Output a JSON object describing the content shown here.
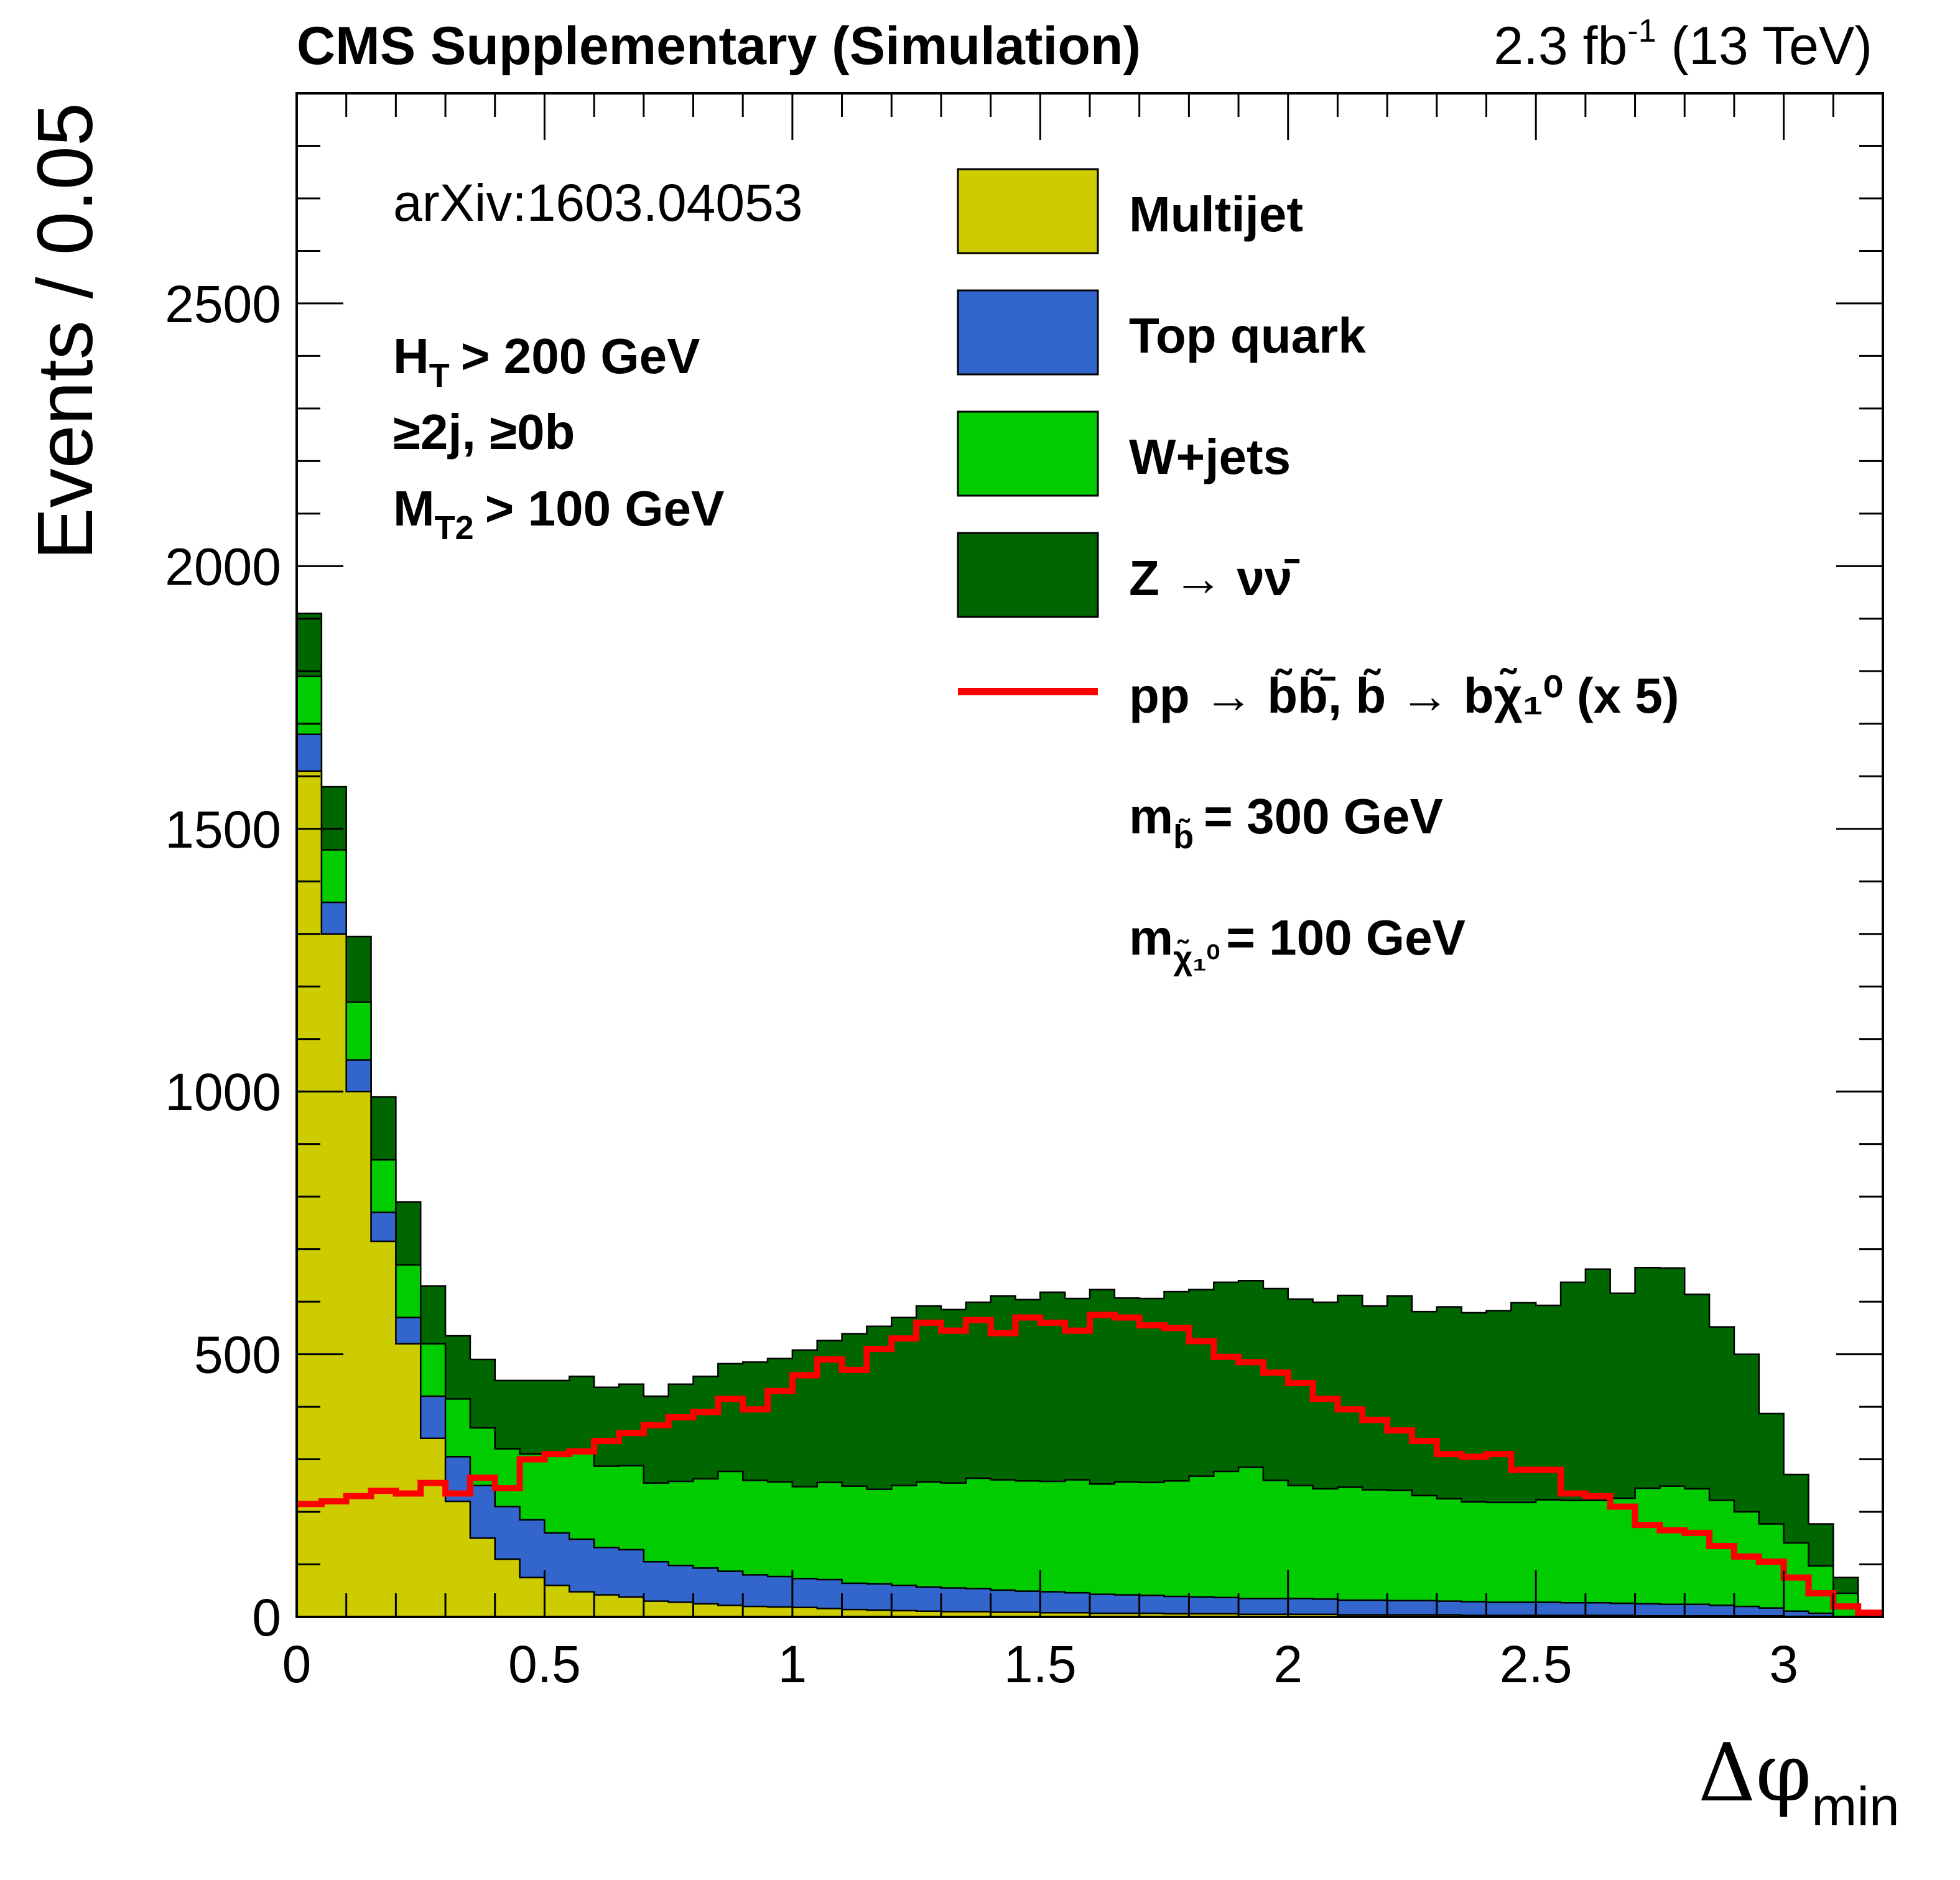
{
  "header": {
    "experiment_label": "CMS Supplementary (Simulation)",
    "lumi_value": "2.3 fb",
    "lumi_exponent": "-1",
    "energy": "(13 TeV)"
  },
  "annotations": {
    "arxiv": "arXiv:1603.04053",
    "ht_cut_prefix": "H",
    "ht_cut_sub": "T",
    "ht_cut_rest": "> 200 GeV",
    "jets_cut": "≥2j, ≥0b",
    "mt2_cut_prefix": "M",
    "mt2_cut_sub": "T2",
    "mt2_cut_rest": "> 100 GeV"
  },
  "legend": {
    "multijet": "Multijet",
    "top": "Top quark",
    "wjets": "W+jets",
    "znunu": "Z  →  νν̄",
    "signal": "pp  →  b̃b̃̄,  b̃  → bχ̃₁⁰ (x 5)",
    "msb_prefix": "m",
    "msb_sub": "b̃",
    "msb_rest": "= 300 GeV",
    "mlsp_prefix": "m",
    "mlsp_sub": "χ̃₁⁰",
    "mlsp_rest": "= 100 GeV"
  },
  "colors": {
    "multijet": "#cccc00",
    "top": "#3366cc",
    "wjets": "#00cc00",
    "znunu": "#006600",
    "signal": "#ff0000"
  },
  "chart_data": {
    "type": "histogram-stacked",
    "xlabel_main": "Δφ",
    "xlabel_sub": "min",
    "ylabel": "Events / 0.05",
    "xlim": [
      0,
      3.2
    ],
    "ylim": [
      0,
      2900
    ],
    "bin_width": 0.05,
    "x_ticks": [
      0,
      0.5,
      1,
      1.5,
      2,
      2.5,
      3
    ],
    "x_tick_labels": [
      "0",
      "0.5",
      "1",
      "1.5",
      "2",
      "2.5",
      "3"
    ],
    "y_ticks": [
      0,
      500,
      1000,
      1500,
      2000,
      2500
    ],
    "y_tick_labels": [
      "0",
      "500",
      "1000",
      "1500",
      "2000",
      "2500"
    ],
    "bin_low_edges": [
      0.0,
      0.05,
      0.1,
      0.15,
      0.2,
      0.25,
      0.3,
      0.35,
      0.4,
      0.45,
      0.5,
      0.55,
      0.6,
      0.65,
      0.7,
      0.75,
      0.8,
      0.85,
      0.9,
      0.95,
      1.0,
      1.05,
      1.1,
      1.15,
      1.2,
      1.25,
      1.3,
      1.35,
      1.4,
      1.45,
      1.5,
      1.55,
      1.6,
      1.65,
      1.7,
      1.75,
      1.8,
      1.85,
      1.9,
      1.95,
      2.0,
      2.05,
      2.1,
      2.15,
      2.2,
      2.25,
      2.3,
      2.35,
      2.4,
      2.45,
      2.5,
      2.55,
      2.6,
      2.65,
      2.7,
      2.75,
      2.8,
      2.85,
      2.9,
      2.95,
      3.0,
      3.05,
      3.1,
      3.15
    ],
    "series": [
      {
        "name": "Multijet",
        "values": [
          1610,
          1300,
          1000,
          715,
          520,
          340,
          220,
          150,
          110,
          75,
          60,
          48,
          42,
          38,
          30,
          28,
          25,
          22,
          20,
          19,
          18,
          16,
          14,
          13,
          12,
          11,
          10,
          10,
          9,
          9,
          8,
          8,
          7,
          7,
          7,
          6,
          6,
          6,
          5,
          5,
          5,
          5,
          4,
          4,
          4,
          4,
          4,
          3,
          3,
          3,
          3,
          3,
          3,
          3,
          2,
          2,
          2,
          2,
          2,
          2,
          1,
          1,
          0,
          0
        ]
      },
      {
        "name": "Top quark",
        "values": [
          70,
          60,
          60,
          55,
          50,
          80,
          85,
          100,
          100,
          110,
          100,
          100,
          90,
          90,
          75,
          70,
          68,
          65,
          60,
          58,
          55,
          55,
          50,
          50,
          48,
          46,
          45,
          44,
          42,
          40,
          40,
          38,
          36,
          35,
          34,
          33,
          32,
          31,
          30,
          30,
          30,
          29,
          28,
          28,
          27,
          27,
          26,
          26,
          25,
          25,
          25,
          24,
          24,
          23,
          23,
          22,
          22,
          20,
          18,
          15,
          10,
          6,
          0,
          0
        ]
      },
      {
        "name": "W+jets",
        "values": [
          110,
          100,
          110,
          100,
          100,
          100,
          110,
          110,
          110,
          125,
          150,
          165,
          155,
          160,
          150,
          160,
          170,
          190,
          180,
          180,
          175,
          185,
          185,
          180,
          190,
          200,
          200,
          210,
          210,
          210,
          210,
          215,
          210,
          215,
          215,
          220,
          230,
          240,
          250,
          225,
          215,
          210,
          215,
          210,
          210,
          200,
          195,
          190,
          190,
          190,
          195,
          195,
          195,
          200,
          220,
          225,
          220,
          200,
          180,
          160,
          130,
          90,
          45,
          0
        ]
      },
      {
        "name": "Z → νν̄",
        "values": [
          120,
          120,
          125,
          120,
          120,
          110,
          120,
          130,
          130,
          140,
          140,
          145,
          150,
          155,
          165,
          185,
          195,
          205,
          225,
          235,
          260,
          270,
          290,
          310,
          320,
          335,
          330,
          335,
          350,
          345,
          360,
          345,
          370,
          350,
          350,
          360,
          355,
          360,
          355,
          365,
          355,
          355,
          365,
          350,
          370,
          350,
          365,
          360,
          365,
          380,
          370,
          415,
          440,
          390,
          420,
          415,
          370,
          330,
          300,
          210,
          130,
          80,
          30,
          0
        ]
      },
      {
        "name": "pp → b̃b̃̄, b̃ → bχ̃₁⁰ (x 5)",
        "values": [
          215,
          220,
          230,
          240,
          235,
          255,
          235,
          265,
          245,
          300,
          310,
          315,
          335,
          350,
          365,
          380,
          390,
          415,
          395,
          430,
          460,
          490,
          470,
          510,
          530,
          560,
          545,
          565,
          540,
          570,
          560,
          545,
          575,
          570,
          555,
          550,
          525,
          495,
          485,
          465,
          445,
          415,
          395,
          375,
          355,
          335,
          310,
          305,
          310,
          280,
          280,
          235,
          230,
          210,
          175,
          165,
          160,
          135,
          115,
          105,
          75,
          45,
          20,
          8
        ]
      }
    ]
  }
}
